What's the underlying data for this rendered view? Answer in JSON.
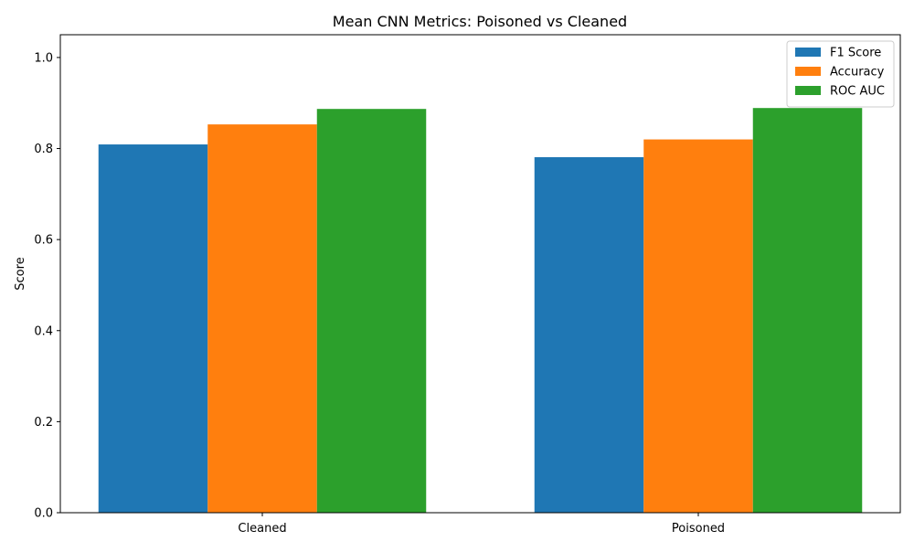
{
  "chart_data": {
    "type": "bar",
    "title": "Mean CNN Metrics: Poisoned vs Cleaned",
    "xlabel": "",
    "ylabel": "Score",
    "categories": [
      "Cleaned",
      "Poisoned"
    ],
    "series": [
      {
        "name": "F1 Score",
        "values": [
          0.809,
          0.781
        ],
        "color": "#1f77b4"
      },
      {
        "name": "Accuracy",
        "values": [
          0.853,
          0.82
        ],
        "color": "#ff7f0e"
      },
      {
        "name": "ROC AUC",
        "values": [
          0.887,
          0.889
        ],
        "color": "#2ca02c"
      }
    ],
    "ylim": [
      0,
      1.05
    ],
    "yticks": [
      0.0,
      0.2,
      0.4,
      0.6,
      0.8,
      1.0
    ],
    "ytick_labels": [
      "0.0",
      "0.2",
      "0.4",
      "0.6",
      "0.8",
      "1.0"
    ],
    "grid": false,
    "legend_position": "top-right"
  }
}
